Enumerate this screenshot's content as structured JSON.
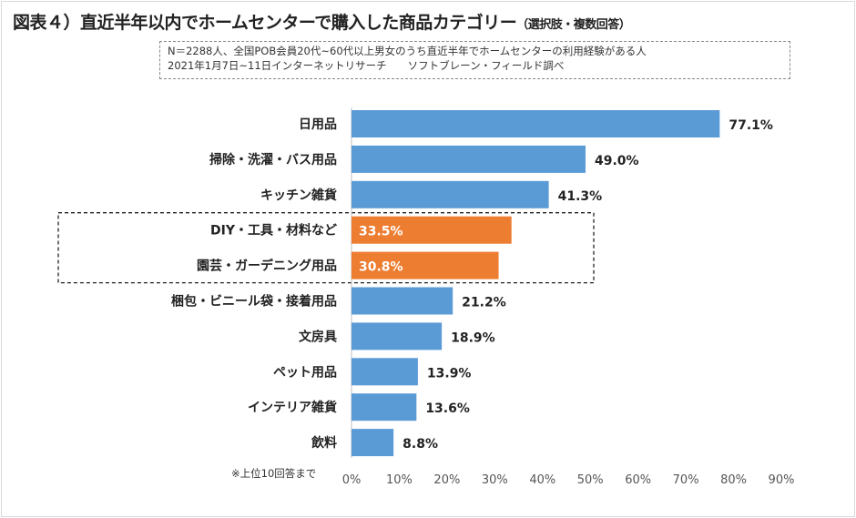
{
  "title": "図表４）直近半年以内でホームセンターで購入した商品カテゴリー",
  "title_note": "（選択肢・複数回答）",
  "note_lines": [
    "N＝2288人、全国POB会員20代~60代以上男女のうち直近半年でホームセンターの利用経験がある人",
    "2021年1月7日~11日インターネットリサーチ　　ソフトブレーン・フィールド調べ"
  ],
  "footnote": "※上位10回答まで",
  "chart_data": {
    "type": "bar",
    "orientation": "horizontal",
    "categories": [
      "日用品",
      "掃除・洗濯・バス用品",
      "キッチン雑貨",
      "DIY・工具・材料など",
      "園芸・ガーデニング用品",
      "梱包・ビニール袋・接着用品",
      "文房具",
      "ペット用品",
      "インテリア雑貨",
      "飲料"
    ],
    "values": [
      77.1,
      49.0,
      41.3,
      33.5,
      30.8,
      21.2,
      18.9,
      13.9,
      13.6,
      8.8
    ],
    "value_labels": [
      "77.1%",
      "49.0%",
      "41.3%",
      "33.5%",
      "30.8%",
      "21.2%",
      "18.9%",
      "13.9%",
      "13.6%",
      "8.8%"
    ],
    "highlighted": [
      3,
      4
    ],
    "xlim": [
      0,
      90
    ],
    "x_ticks": [
      "0%",
      "10%",
      "20%",
      "30%",
      "40%",
      "50%",
      "60%",
      "70%",
      "80%",
      "90%"
    ],
    "grid": false,
    "colors": {
      "default": "#5b9bd5",
      "highlight": "#ed7d31"
    }
  }
}
